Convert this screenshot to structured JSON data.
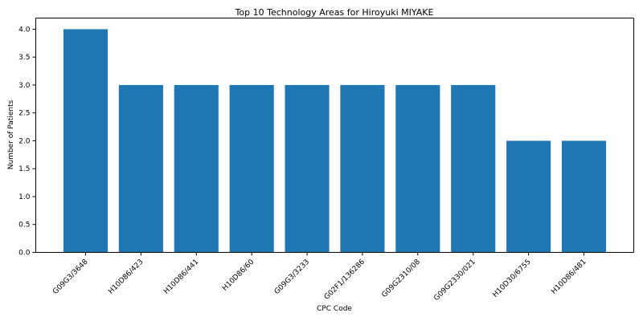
{
  "chart_data": {
    "type": "bar",
    "title": "Top 10 Technology Areas for Hiroyuki MIYAKE",
    "xlabel": "CPC Code",
    "ylabel": "Number of Patients",
    "categories": [
      "G09G3/3648",
      "H10D86/423",
      "H10D86/441",
      "H10D86/60",
      "G09G3/3233",
      "G02F1/136286",
      "G09G2310/08",
      "G09G2330/021",
      "H10D30/6755",
      "H10D86/481"
    ],
    "values": [
      4,
      3,
      3,
      3,
      3,
      3,
      3,
      3,
      2,
      2
    ],
    "ylim": [
      0,
      4.2
    ],
    "yticks": [
      0.0,
      0.5,
      1.0,
      1.5,
      2.0,
      2.5,
      3.0,
      3.5,
      4.0
    ],
    "ytick_labels": [
      "0.0",
      "0.5",
      "1.0",
      "1.5",
      "2.0",
      "2.5",
      "3.0",
      "3.5",
      "4.0"
    ],
    "grid": false,
    "bar_color": "#1f77b4"
  }
}
